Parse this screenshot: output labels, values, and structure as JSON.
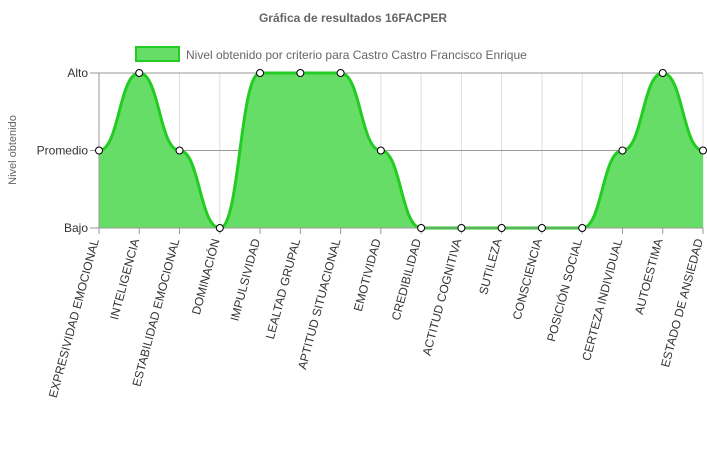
{
  "chart_data": {
    "type": "area",
    "title": "Gráfica de resultados 16FACPER",
    "ylabel": "Nivel obtenido",
    "xlabel": "",
    "y_levels": [
      "Bajo",
      "Promedio",
      "Alto"
    ],
    "ylim": [
      0,
      2
    ],
    "categories": [
      "EXPRESIVIDAD EMOCIONAL",
      "INTELIGENCIA",
      "ESTABILIDAD EMOCIONAL",
      "DOMINACIÓN",
      "IMPULSIVIDAD",
      "LEALTAD GRUPAL",
      "APTITUD SITUACIONAL",
      "EMOTIVIDAD",
      "CREDIBILIDAD",
      "ACTITUD COGNITIVA",
      "SUTILEZA",
      "CONSCIENCIA",
      "POSICIÓN SOCIAL",
      "CERTEZA INDIVIDUAL",
      "AUTOESTIMA",
      "ESTADO DE ANSIEDAD"
    ],
    "series": [
      {
        "name": "Nivel obtenido por criterio para Castro Castro Francisco Enrique",
        "values": [
          1,
          2,
          1,
          0,
          2,
          2,
          2,
          1,
          0,
          0,
          0,
          0,
          0,
          1,
          2,
          1
        ]
      }
    ],
    "grid": true,
    "legend_position": "top-center",
    "colors": {
      "fill": "#66dd66",
      "line": "#22cc22",
      "point_fill": "#ffffff",
      "point_stroke": "#000000",
      "grid": "#dddddd",
      "axis": "#999999",
      "text": "#333333",
      "title": "#666666"
    }
  }
}
